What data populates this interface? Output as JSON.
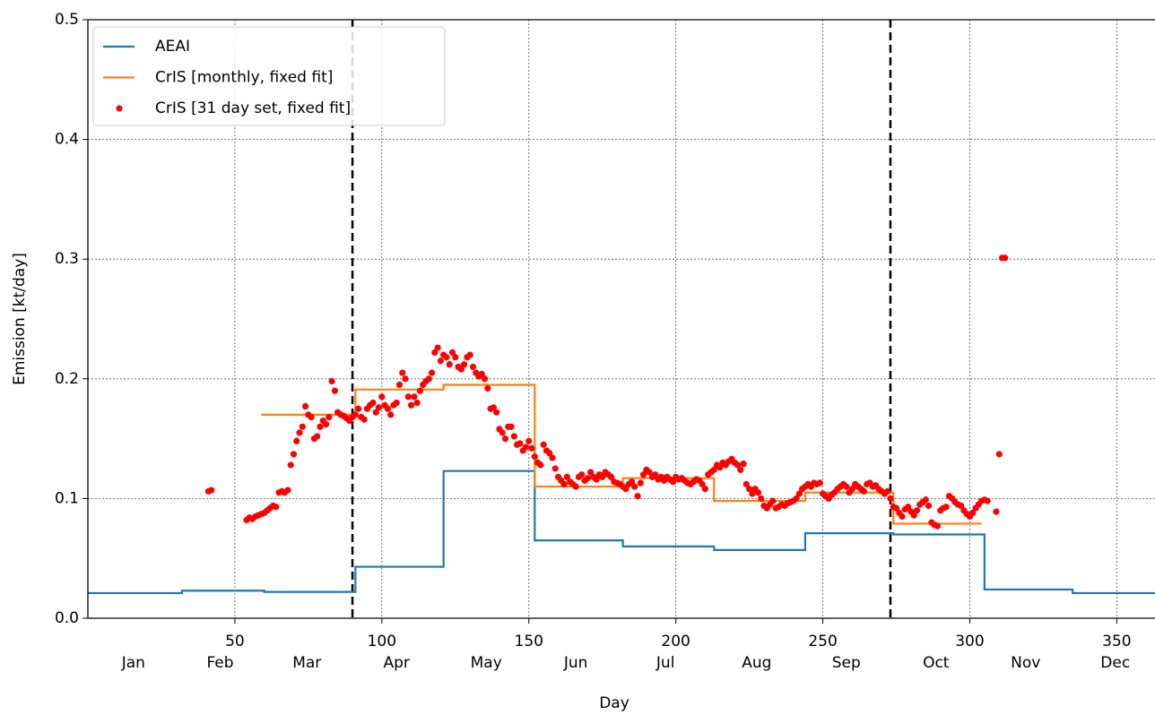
{
  "chart_data": {
    "type": "line",
    "xlabel": "Day",
    "ylabel": "Emission [kt/day]",
    "xlim": [
      0,
      363
    ],
    "ylim": [
      0,
      0.5
    ],
    "xticks": [
      50,
      100,
      150,
      200,
      250,
      300,
      350
    ],
    "month_ticks": [
      {
        "value": 15.5,
        "label": "Jan"
      },
      {
        "value": 45,
        "label": "Feb"
      },
      {
        "value": 74.5,
        "label": "Mar"
      },
      {
        "value": 105,
        "label": "Apr"
      },
      {
        "value": 135.5,
        "label": "May"
      },
      {
        "value": 166,
        "label": "Jun"
      },
      {
        "value": 196.5,
        "label": "Jul"
      },
      {
        "value": 227.5,
        "label": "Aug"
      },
      {
        "value": 258,
        "label": "Sep"
      },
      {
        "value": 288.5,
        "label": "Oct"
      },
      {
        "value": 319,
        "label": "Nov"
      },
      {
        "value": 349.5,
        "label": "Dec"
      }
    ],
    "yticks": [
      {
        "value": 0,
        "label": "0.0"
      },
      0.1,
      0.2,
      0.3,
      0.4,
      0.5
    ],
    "grid": true,
    "legend": "upper left",
    "vlines": [
      90,
      273
    ],
    "series": [
      {
        "name": "AEAI",
        "color": "#1f77b4",
        "drawstyle": "steps-post",
        "x": [
          0,
          32,
          60,
          91,
          121,
          152,
          182,
          213,
          244,
          274,
          305,
          335,
          363
        ],
        "values": [
          0.021,
          0.023,
          0.022,
          0.043,
          0.123,
          0.065,
          0.06,
          0.057,
          0.071,
          0.07,
          0.024,
          0.021,
          0.021
        ]
      },
      {
        "name": "CrIS [monthly, fixed fit]",
        "color": "#ff7f0e",
        "drawstyle": "steps-post",
        "x": [
          59,
          91,
          121,
          152,
          182,
          213,
          244,
          274,
          304
        ],
        "values": [
          0.17,
          0.191,
          0.195,
          0.11,
          0.117,
          0.098,
          0.105,
          0.079,
          0.079
        ]
      },
      {
        "name": "CrIS [31 day set, fixed fit]",
        "color": "#ff0000",
        "kind": "scatter",
        "x": [
          41,
          42,
          54,
          55,
          56,
          57,
          58,
          59,
          60,
          61,
          62,
          63,
          64,
          65,
          66,
          67,
          68,
          69,
          70,
          71,
          72,
          73,
          74,
          75,
          76,
          77,
          78,
          79,
          80,
          81,
          82,
          83,
          84,
          85,
          86,
          87,
          88,
          89,
          90,
          91,
          92,
          93,
          94,
          95,
          96,
          97,
          98,
          99,
          100,
          101,
          102,
          103,
          104,
          105,
          106,
          107,
          108,
          109,
          110,
          111,
          112,
          113,
          114,
          115,
          116,
          117,
          118,
          119,
          120,
          121,
          122,
          123,
          124,
          125,
          126,
          127,
          128,
          129,
          130,
          131,
          132,
          133,
          134,
          135,
          136,
          137,
          138,
          139,
          140,
          141,
          142,
          143,
          144,
          145,
          146,
          147,
          148,
          149,
          150,
          151,
          152,
          153,
          154,
          155,
          156,
          157,
          158,
          159,
          160,
          161,
          162,
          163,
          164,
          165,
          166,
          167,
          168,
          169,
          170,
          171,
          172,
          173,
          174,
          175,
          176,
          177,
          178,
          179,
          180,
          181,
          182,
          183,
          184,
          185,
          186,
          187,
          188,
          189,
          190,
          191,
          192,
          193,
          194,
          195,
          196,
          197,
          198,
          199,
          200,
          201,
          202,
          203,
          204,
          205,
          206,
          207,
          208,
          209,
          210,
          211,
          212,
          213,
          214,
          215,
          216,
          217,
          218,
          219,
          220,
          221,
          222,
          223,
          224,
          225,
          226,
          227,
          228,
          229,
          230,
          231,
          232,
          233,
          234,
          235,
          236,
          237,
          238,
          239,
          240,
          241,
          242,
          243,
          244,
          245,
          246,
          247,
          248,
          249,
          250,
          251,
          252,
          253,
          254,
          255,
          256,
          257,
          258,
          259,
          260,
          261,
          262,
          263,
          264,
          265,
          266,
          267,
          268,
          269,
          270,
          271,
          272,
          273,
          274,
          275,
          276,
          277,
          278,
          279,
          280,
          281,
          282,
          283,
          284,
          285,
          286,
          287,
          288,
          289,
          290,
          291,
          292,
          293,
          294,
          295,
          296,
          297,
          298,
          299,
          300,
          301,
          302,
          303,
          304,
          305,
          306,
          309,
          310,
          311,
          312
        ],
        "values": [
          0.106,
          0.107,
          0.082,
          0.084,
          0.083,
          0.085,
          0.086,
          0.087,
          0.088,
          0.09,
          0.092,
          0.094,
          0.093,
          0.105,
          0.106,
          0.105,
          0.107,
          0.128,
          0.137,
          0.148,
          0.155,
          0.16,
          0.177,
          0.17,
          0.168,
          0.15,
          0.152,
          0.16,
          0.165,
          0.162,
          0.168,
          0.198,
          0.19,
          0.172,
          0.17,
          0.169,
          0.167,
          0.165,
          0.168,
          0.17,
          0.175,
          0.168,
          0.166,
          0.175,
          0.178,
          0.18,
          0.172,
          0.176,
          0.185,
          0.178,
          0.175,
          0.17,
          0.178,
          0.18,
          0.195,
          0.205,
          0.2,
          0.185,
          0.178,
          0.185,
          0.18,
          0.19,
          0.195,
          0.198,
          0.2,
          0.205,
          0.222,
          0.226,
          0.215,
          0.22,
          0.218,
          0.212,
          0.222,
          0.218,
          0.21,
          0.208,
          0.212,
          0.218,
          0.22,
          0.21,
          0.205,
          0.202,
          0.204,
          0.2,
          0.192,
          0.175,
          0.176,
          0.172,
          0.158,
          0.155,
          0.15,
          0.16,
          0.16,
          0.152,
          0.145,
          0.146,
          0.14,
          0.143,
          0.148,
          0.142,
          0.135,
          0.13,
          0.128,
          0.145,
          0.14,
          0.138,
          0.134,
          0.125,
          0.118,
          0.115,
          0.112,
          0.118,
          0.114,
          0.112,
          0.11,
          0.118,
          0.12,
          0.115,
          0.117,
          0.122,
          0.118,
          0.116,
          0.12,
          0.118,
          0.122,
          0.12,
          0.118,
          0.114,
          0.113,
          0.112,
          0.11,
          0.108,
          0.112,
          0.114,
          0.11,
          0.102,
          0.113,
          0.12,
          0.124,
          0.122,
          0.118,
          0.12,
          0.116,
          0.118,
          0.115,
          0.118,
          0.116,
          0.114,
          0.118,
          0.116,
          0.117,
          0.115,
          0.113,
          0.112,
          0.114,
          0.116,
          0.115,
          0.112,
          0.108,
          0.12,
          0.122,
          0.124,
          0.128,
          0.126,
          0.13,
          0.128,
          0.131,
          0.133,
          0.13,
          0.128,
          0.124,
          0.129,
          0.112,
          0.108,
          0.104,
          0.108,
          0.105,
          0.1,
          0.094,
          0.092,
          0.095,
          0.098,
          0.092,
          0.093,
          0.095,
          0.094,
          0.096,
          0.097,
          0.098,
          0.1,
          0.104,
          0.108,
          0.11,
          0.112,
          0.11,
          0.113,
          0.112,
          0.113,
          0.104,
          0.102,
          0.1,
          0.103,
          0.105,
          0.108,
          0.11,
          0.112,
          0.11,
          0.105,
          0.108,
          0.112,
          0.11,
          0.108,
          0.106,
          0.112,
          0.113,
          0.11,
          0.111,
          0.108,
          0.106,
          0.104,
          0.106,
          0.1,
          0.093,
          0.092,
          0.088,
          0.085,
          0.091,
          0.093,
          0.089,
          0.086,
          0.09,
          0.095,
          0.097,
          0.099,
          0.094,
          0.08,
          0.078,
          0.077,
          0.09,
          0.092,
          0.093,
          0.102,
          0.1,
          0.097,
          0.095,
          0.094,
          0.09,
          0.087,
          0.085,
          0.088,
          0.092,
          0.095,
          0.098,
          0.099,
          0.098,
          0.089,
          0.137,
          0.301,
          0.301
        ]
      }
    ]
  }
}
